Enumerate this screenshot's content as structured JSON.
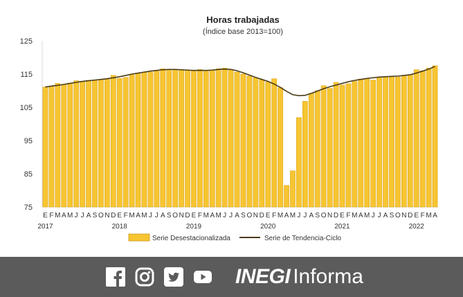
{
  "chart_data": {
    "type": "bar",
    "title": "Horas trabajadas",
    "subtitle": "(Índice base 2013=100)",
    "ylim": [
      75,
      125
    ],
    "yticks": [
      75,
      85,
      95,
      105,
      115,
      125
    ],
    "grid": false,
    "legend_position": "bottom",
    "month_labels": [
      "E",
      "F",
      "M",
      "A",
      "M",
      "J",
      "J",
      "A",
      "S",
      "O",
      "N",
      "D",
      "E",
      "F",
      "M",
      "A",
      "M",
      "J",
      "J",
      "A",
      "S",
      "O",
      "N",
      "D",
      "E",
      "F",
      "M",
      "A",
      "M",
      "J",
      "J",
      "A",
      "S",
      "O",
      "N",
      "D",
      "E",
      "F",
      "M",
      "A",
      "M",
      "J",
      "J",
      "A",
      "S",
      "O",
      "N",
      "D",
      "E",
      "F",
      "M",
      "A",
      "M",
      "J",
      "J",
      "A",
      "S",
      "O",
      "N",
      "D",
      "E",
      "F",
      "M",
      "A"
    ],
    "years": [
      {
        "label": "2017",
        "start_index": 0
      },
      {
        "label": "2018",
        "start_index": 12
      },
      {
        "label": "2019",
        "start_index": 24
      },
      {
        "label": "2020",
        "start_index": 36
      },
      {
        "label": "2021",
        "start_index": 48
      },
      {
        "label": "2022",
        "start_index": 60
      }
    ],
    "series": [
      {
        "name": "Serie Desestacionalizada",
        "kind": "bar",
        "color": "#f7c531",
        "values": [
          111.1,
          111.3,
          112.2,
          111.9,
          112.3,
          113.0,
          112.8,
          113.1,
          113.1,
          113.3,
          113.5,
          114.6,
          113.7,
          114.0,
          114.8,
          115.2,
          115.5,
          115.6,
          116.0,
          116.6,
          116.4,
          116.3,
          116.2,
          116.1,
          116.0,
          116.4,
          116.0,
          116.2,
          116.6,
          116.8,
          116.4,
          115.6,
          115.0,
          114.4,
          113.9,
          113.3,
          112.6,
          113.6,
          110.9,
          81.5,
          85.9,
          101.9,
          106.8,
          109.2,
          110.0,
          111.5,
          110.7,
          112.5,
          111.7,
          112.1,
          112.8,
          113.5,
          113.5,
          113.2,
          114.0,
          114.1,
          114.2,
          114.1,
          114.5,
          114.8,
          116.3,
          116.0,
          116.8,
          117.5
        ]
      },
      {
        "name": "Serie de Tendencia-Ciclo",
        "kind": "line",
        "color": "#4a3c16",
        "values": [
          111.1,
          111.4,
          111.6,
          111.9,
          112.2,
          112.5,
          112.8,
          113.0,
          113.2,
          113.4,
          113.6,
          113.9,
          114.2,
          114.6,
          115.0,
          115.3,
          115.6,
          115.9,
          116.1,
          116.3,
          116.4,
          116.4,
          116.3,
          116.2,
          116.1,
          116.1,
          116.1,
          116.2,
          116.4,
          116.5,
          116.4,
          116.0,
          115.4,
          114.7,
          114.0,
          113.4,
          112.8,
          112.0,
          111.0,
          109.8,
          108.8,
          108.5,
          108.6,
          109.2,
          109.9,
          110.6,
          111.2,
          111.7,
          112.2,
          112.7,
          113.1,
          113.4,
          113.7,
          113.9,
          114.1,
          114.2,
          114.3,
          114.4,
          114.6,
          114.8,
          115.3,
          115.9,
          116.5,
          117.3
        ]
      }
    ]
  },
  "footer": {
    "background": "#5b5b5b",
    "icons": [
      "facebook-icon",
      "instagram-icon",
      "twitter-icon",
      "youtube-icon"
    ],
    "brand_bold": "INEGI",
    "brand_regular": "Informa"
  }
}
